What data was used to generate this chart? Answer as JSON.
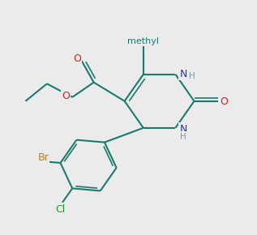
{
  "bg_color": "#ebebeb",
  "bond_color": "#1a7a6e",
  "bond_lw": 1.5,
  "N_color": "#2233cc",
  "O_color": "#cc2020",
  "Br_color": "#cc7700",
  "Cl_color": "#229922",
  "H_color": "#7799aa",
  "font_size": 9.0,
  "font_size_small": 7.5,
  "methyl_label": "methyl",
  "title": ""
}
